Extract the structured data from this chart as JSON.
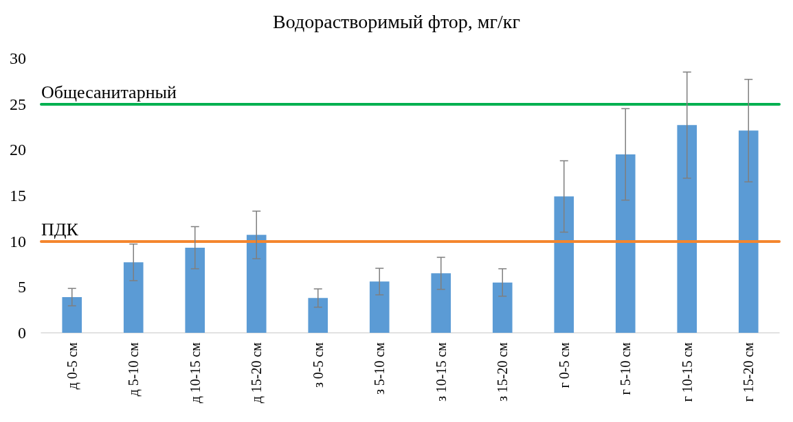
{
  "chart_data": {
    "type": "bar",
    "title": "Водорастворимый фтор, мг/кг",
    "categories": [
      "д 0-5 см",
      "д 5-10 см",
      "д 10-15 см",
      "д 15-20 см",
      "з 0-5 см",
      "з 5-10 см",
      "з 10-15 см",
      "з 15-20 см",
      "г 0-5 см",
      "г 5-10 см",
      "г 10-15 см",
      "г 15-20 см"
    ],
    "values": [
      3.9,
      7.7,
      9.3,
      10.7,
      3.8,
      5.6,
      6.5,
      5.5,
      14.9,
      19.5,
      22.7,
      22.1
    ],
    "errors": [
      0.95,
      2.0,
      2.3,
      2.6,
      1.0,
      1.45,
      1.75,
      1.5,
      3.9,
      5.0,
      5.8,
      5.6
    ],
    "color": "#5b9bd5",
    "ylim": [
      0,
      30
    ],
    "yticks": [
      0,
      5,
      10,
      15,
      20,
      25,
      30
    ],
    "grid": false,
    "ref_lines": [
      {
        "axis": "y",
        "value": 25,
        "label": "Общесанитарный",
        "color": "#00b050"
      },
      {
        "axis": "y",
        "value": 10,
        "label": "ПДК",
        "color": "#f4862e"
      }
    ]
  }
}
